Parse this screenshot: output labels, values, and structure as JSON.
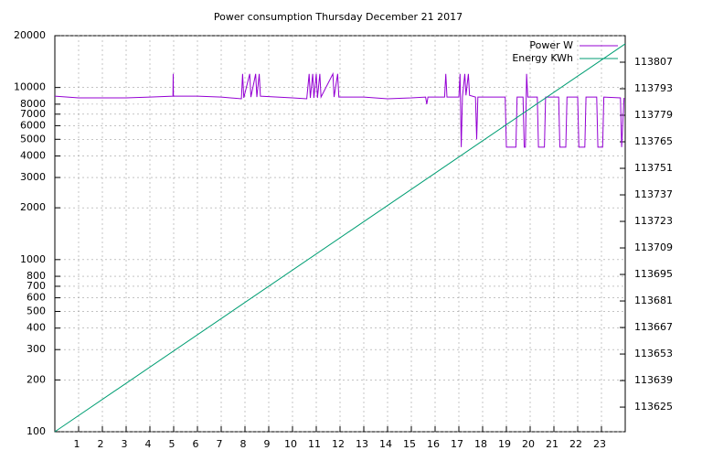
{
  "chart_data": {
    "type": "line",
    "title": "Power consumption Thursday December 21 2017",
    "xlim": [
      0,
      24
    ],
    "xticks": [
      1,
      2,
      3,
      4,
      5,
      6,
      7,
      8,
      9,
      10,
      11,
      12,
      13,
      14,
      15,
      16,
      17,
      18,
      19,
      20,
      21,
      22,
      23
    ],
    "ylim": [
      100,
      20000
    ],
    "yticks": [
      100,
      200,
      300,
      400,
      500,
      600,
      700,
      800,
      1000,
      2000,
      3000,
      4000,
      5000,
      6000,
      7000,
      8000,
      10000,
      20000
    ],
    "y_log": true,
    "y2lim": [
      113612,
      113821
    ],
    "y2ticks": [
      113625,
      113639,
      113653,
      113667,
      113681,
      113695,
      113709,
      113723,
      113737,
      113751,
      113765,
      113779,
      113793,
      113807
    ],
    "grid": true,
    "legend": "top-right",
    "series": [
      {
        "name": "Power W",
        "color": "#9400d3",
        "x": [
          0,
          1,
          2,
          3,
          4,
          4.97,
          4.98,
          4.99,
          6,
          7,
          7.85,
          7.9,
          7.95,
          8.2,
          8.25,
          8.45,
          8.5,
          8.6,
          8.65,
          10,
          10.6,
          10.7,
          10.75,
          10.85,
          10.9,
          11,
          11.05,
          11.15,
          11.2,
          11.7,
          11.75,
          11.9,
          11.95,
          13,
          14,
          15,
          15.6,
          15.65,
          15.7,
          16.4,
          16.45,
          16.5,
          17,
          17.05,
          17.1,
          17.15,
          17.25,
          17.3,
          17.4,
          17.45,
          17.7,
          17.75,
          17.8,
          18.95,
          19,
          19.4,
          19.45,
          19.7,
          19.75,
          19.8,
          19.85,
          19.9,
          20.3,
          20.35,
          20.6,
          20.65,
          21.2,
          21.25,
          21.5,
          21.55,
          22,
          22.05,
          22.3,
          22.35,
          22.8,
          22.85,
          23.05,
          23.1,
          23.8,
          23.85,
          23.95
        ],
        "values": [
          8900,
          8700,
          8700,
          8700,
          8800,
          8900,
          12000,
          8900,
          8900,
          8800,
          8600,
          12000,
          8700,
          12000,
          8800,
          12000,
          8800,
          12000,
          8900,
          8700,
          8600,
          12000,
          8700,
          12000,
          8700,
          12000,
          8700,
          12000,
          8800,
          12000,
          8800,
          12000,
          8800,
          8800,
          8600,
          8700,
          8800,
          8000,
          8800,
          8800,
          12000,
          8800,
          8800,
          12000,
          4500,
          8800,
          12000,
          9000,
          12000,
          9000,
          8800,
          5000,
          8800,
          8800,
          4500,
          4500,
          8800,
          8800,
          4500,
          4500,
          12000,
          8800,
          8800,
          4500,
          4500,
          8800,
          8800,
          4500,
          4500,
          8800,
          8800,
          4500,
          4500,
          8800,
          8800,
          4500,
          4500,
          8800,
          8700,
          4500,
          8700
        ]
      },
      {
        "name": "Energy KWh",
        "color": "#009e73",
        "axis": "y2",
        "x": [
          0,
          24
        ],
        "values": [
          113612,
          113816.7
        ]
      }
    ]
  }
}
